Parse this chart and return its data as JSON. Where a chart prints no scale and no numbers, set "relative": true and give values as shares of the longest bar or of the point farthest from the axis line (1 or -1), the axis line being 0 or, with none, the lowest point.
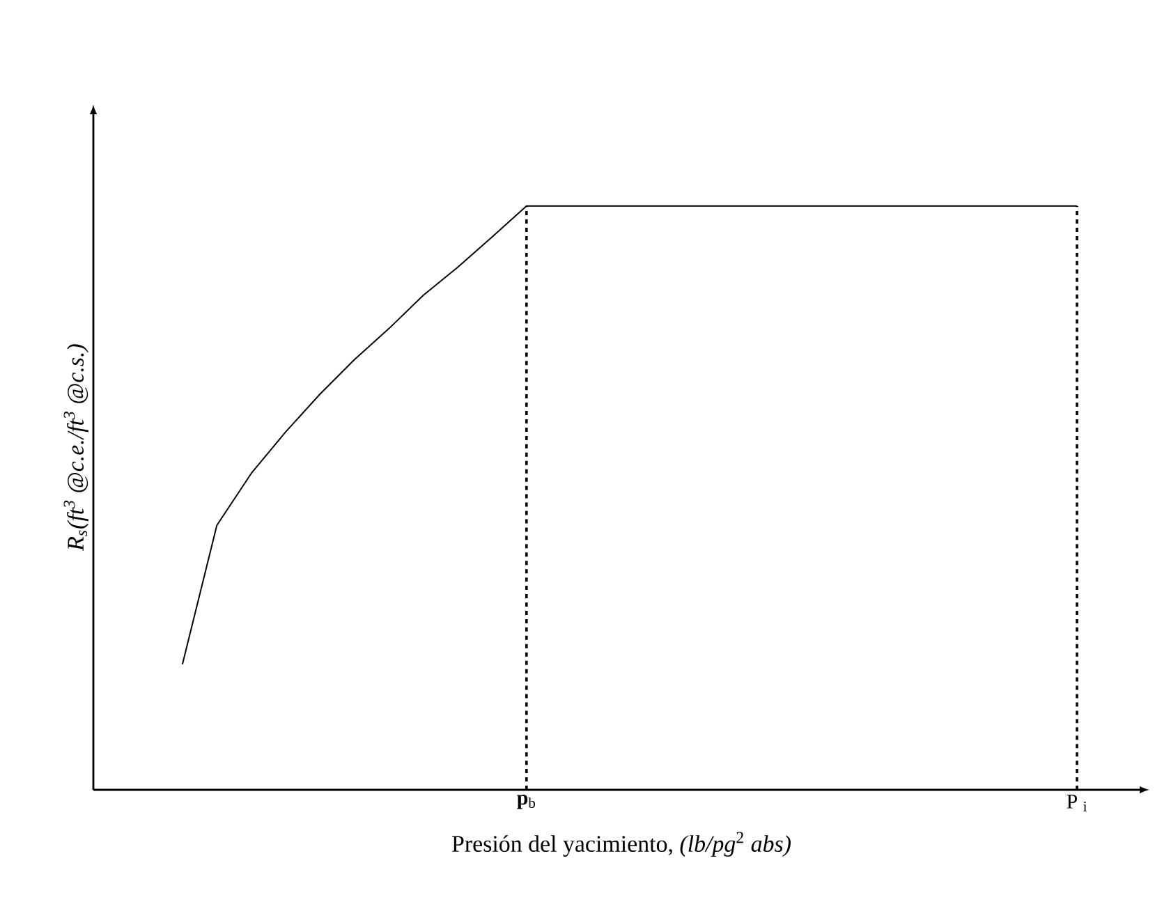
{
  "chart_data": {
    "type": "line",
    "relative": true,
    "xlabel": "Presión del yacimiento, *(lb/pg*$^{2}$ *abs)*",
    "ylabel": "R$_{s}$(ft$^{3}$ @c.e./ft$^{3}$ @c.s.)",
    "categories": [
      null,
      null,
      null,
      null,
      null,
      null,
      null,
      null,
      null,
      null,
      "**p**$_{b}$",
      null,
      null,
      null,
      null,
      null,
      null,
      null,
      null,
      null,
      null,
      null,
      null,
      null,
      null,
      null,
      "P $_{i}$"
    ],
    "series": [
      {
        "color": "#000000",
        "values": [
          0.215,
          0.453,
          0.542,
          0.613,
          0.678,
          0.737,
          0.79,
          0.847,
          0.895,
          0.947,
          1.0,
          1.0,
          1.0,
          1.0,
          1.0,
          1.0,
          1.0,
          1.0,
          1.0,
          1.0,
          1.0,
          1.0,
          1.0,
          1.0,
          1.0,
          1.0,
          1.0
        ]
      }
    ],
    "ref_lines": [
      {
        "axis": "x",
        "value": "**p**$_{b}$",
        "line_style": "dashed",
        "color": "#000000"
      },
      {
        "axis": "x",
        "value": "P $_{i}$",
        "line_style": "dashed",
        "color": "#000000"
      }
    ],
    "marker": "none",
    "line_style": "solid"
  }
}
